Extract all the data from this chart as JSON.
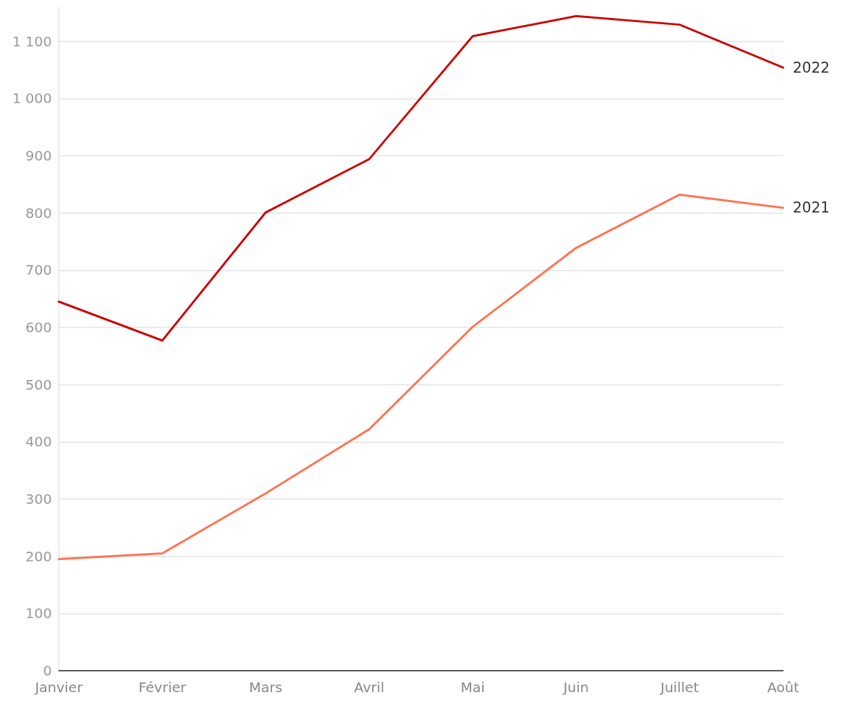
{
  "chart_data": {
    "type": "line",
    "categories": [
      "Janvier",
      "Février",
      "Mars",
      "Avril",
      "Mai",
      "Juin",
      "Juillet",
      "Août"
    ],
    "series": [
      {
        "name": "2022",
        "color": "#cc0000",
        "values": [
          645,
          577,
          801,
          894,
          1109,
          1144,
          1129,
          1054
        ]
      },
      {
        "name": "2021",
        "color": "#ff7350",
        "values": [
          195,
          205,
          310,
          422,
          601,
          739,
          832,
          809
        ]
      }
    ],
    "yticks": [
      0,
      100,
      200,
      300,
      400,
      500,
      600,
      700,
      800,
      900,
      {
        "value": 1000,
        "label": "1 000"
      },
      {
        "value": 1100,
        "label": "1 100"
      }
    ],
    "ylim": [
      0,
      1160
    ],
    "grid": "y",
    "marker": "none",
    "line_style": "solid",
    "legend": false
  }
}
